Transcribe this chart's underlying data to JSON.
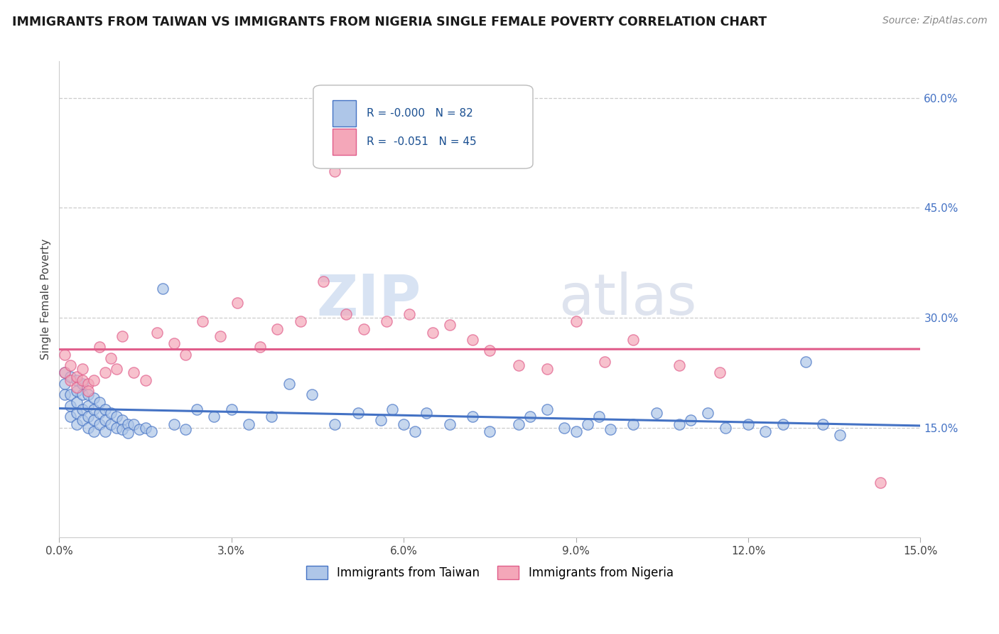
{
  "title": "IMMIGRANTS FROM TAIWAN VS IMMIGRANTS FROM NIGERIA SINGLE FEMALE POVERTY CORRELATION CHART",
  "source_text": "Source: ZipAtlas.com",
  "ylabel": "Single Female Poverty",
  "legend_labels": [
    "Immigrants from Taiwan",
    "Immigrants from Nigeria"
  ],
  "r_values": [
    "-0.000",
    "-0.051"
  ],
  "n_values": [
    "82",
    "45"
  ],
  "xlim": [
    0.0,
    0.15
  ],
  "ylim": [
    0.0,
    0.65
  ],
  "xticks": [
    0.0,
    0.03,
    0.06,
    0.09,
    0.12,
    0.15
  ],
  "yticks_right": [
    0.15,
    0.3,
    0.45,
    0.6
  ],
  "color_taiwan": "#aec6e8",
  "color_nigeria": "#f4a7b9",
  "line_color_taiwan": "#4472c4",
  "line_color_nigeria": "#e05c8a",
  "watermark_zip": "ZIP",
  "watermark_atlas": "atlas",
  "taiwan_x": [
    0.001,
    0.001,
    0.001,
    0.002,
    0.002,
    0.002,
    0.002,
    0.003,
    0.003,
    0.003,
    0.003,
    0.003,
    0.004,
    0.004,
    0.004,
    0.004,
    0.005,
    0.005,
    0.005,
    0.005,
    0.006,
    0.006,
    0.006,
    0.006,
    0.007,
    0.007,
    0.007,
    0.008,
    0.008,
    0.008,
    0.009,
    0.009,
    0.01,
    0.01,
    0.011,
    0.011,
    0.012,
    0.012,
    0.013,
    0.014,
    0.015,
    0.016,
    0.018,
    0.02,
    0.022,
    0.024,
    0.027,
    0.03,
    0.033,
    0.037,
    0.04,
    0.044,
    0.048,
    0.052,
    0.056,
    0.058,
    0.06,
    0.062,
    0.064,
    0.068,
    0.072,
    0.075,
    0.08,
    0.082,
    0.085,
    0.088,
    0.09,
    0.092,
    0.094,
    0.096,
    0.1,
    0.104,
    0.108,
    0.11,
    0.113,
    0.116,
    0.12,
    0.123,
    0.126,
    0.13,
    0.133,
    0.136
  ],
  "taiwan_y": [
    0.225,
    0.21,
    0.195,
    0.22,
    0.195,
    0.18,
    0.165,
    0.215,
    0.2,
    0.185,
    0.17,
    0.155,
    0.21,
    0.195,
    0.175,
    0.16,
    0.195,
    0.18,
    0.165,
    0.15,
    0.19,
    0.175,
    0.16,
    0.145,
    0.185,
    0.17,
    0.155,
    0.175,
    0.16,
    0.145,
    0.17,
    0.155,
    0.165,
    0.15,
    0.16,
    0.148,
    0.155,
    0.143,
    0.155,
    0.148,
    0.15,
    0.145,
    0.34,
    0.155,
    0.148,
    0.175,
    0.165,
    0.175,
    0.155,
    0.165,
    0.21,
    0.195,
    0.155,
    0.17,
    0.16,
    0.175,
    0.155,
    0.145,
    0.17,
    0.155,
    0.165,
    0.145,
    0.155,
    0.165,
    0.175,
    0.15,
    0.145,
    0.155,
    0.165,
    0.148,
    0.155,
    0.17,
    0.155,
    0.16,
    0.17,
    0.15,
    0.155,
    0.145,
    0.155,
    0.24,
    0.155,
    0.14
  ],
  "nigeria_x": [
    0.001,
    0.001,
    0.002,
    0.002,
    0.003,
    0.003,
    0.004,
    0.004,
    0.005,
    0.005,
    0.006,
    0.007,
    0.008,
    0.009,
    0.01,
    0.011,
    0.013,
    0.015,
    0.017,
    0.02,
    0.022,
    0.025,
    0.028,
    0.031,
    0.035,
    0.038,
    0.042,
    0.046,
    0.05,
    0.053,
    0.057,
    0.061,
    0.065,
    0.068,
    0.072,
    0.075,
    0.08,
    0.085,
    0.09,
    0.095,
    0.1,
    0.108,
    0.115,
    0.048,
    0.143
  ],
  "nigeria_y": [
    0.25,
    0.225,
    0.235,
    0.215,
    0.22,
    0.205,
    0.23,
    0.215,
    0.21,
    0.2,
    0.215,
    0.26,
    0.225,
    0.245,
    0.23,
    0.275,
    0.225,
    0.215,
    0.28,
    0.265,
    0.25,
    0.295,
    0.275,
    0.32,
    0.26,
    0.285,
    0.295,
    0.35,
    0.305,
    0.285,
    0.295,
    0.305,
    0.28,
    0.29,
    0.27,
    0.255,
    0.235,
    0.23,
    0.295,
    0.24,
    0.27,
    0.235,
    0.225,
    0.5,
    0.075
  ]
}
